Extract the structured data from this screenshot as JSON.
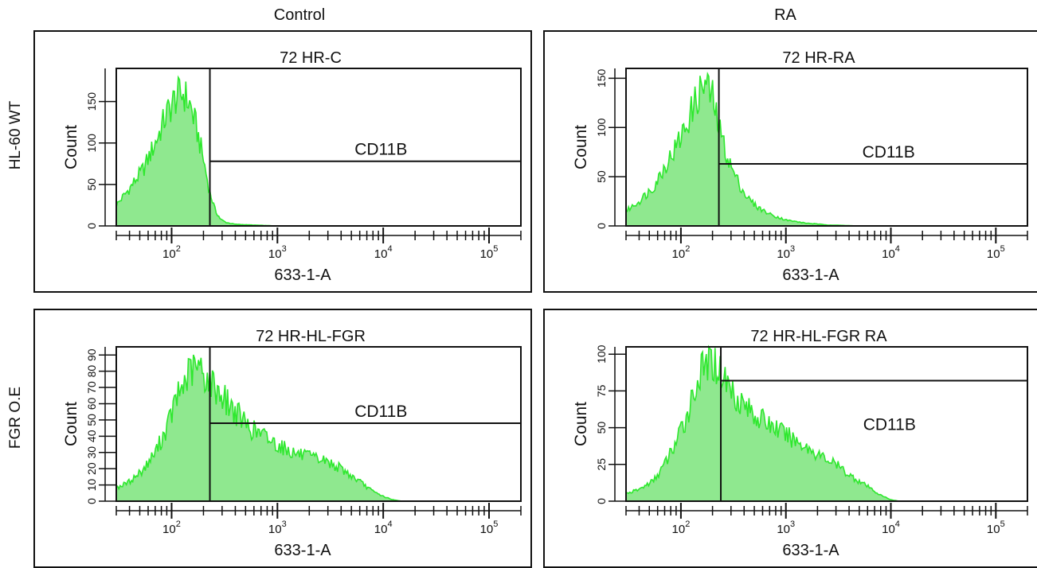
{
  "column_titles": [
    "Control",
    "RA"
  ],
  "row_titles": [
    "HL-60 WT",
    "FGR O.E"
  ],
  "chart_data": [
    {
      "type": "area",
      "title": "72 HR-C",
      "xlabel": "633-1-A",
      "ylabel": "Count",
      "x_scale": "log",
      "x_ticks": [
        "10^2",
        "10^3",
        "10^4",
        "10^5"
      ],
      "y_ticks": [
        0,
        50,
        100,
        150
      ],
      "ylim": [
        0,
        190
      ],
      "gate_label": "CD11B",
      "gate_start": 230,
      "gate_level": 78,
      "fill_color": "#8fe88f",
      "line_color": "#2ee82e",
      "series": [
        {
          "x": [
            30,
            40,
            55,
            70,
            90,
            110,
            130,
            150,
            170,
            200,
            230,
            260,
            290,
            330,
            400,
            600,
            1000,
            3000,
            10000,
            100000
          ],
          "values": [
            25,
            45,
            70,
            100,
            135,
            155,
            160,
            145,
            120,
            80,
            40,
            18,
            8,
            4,
            2,
            1,
            0,
            0,
            0,
            0
          ]
        }
      ]
    },
    {
      "type": "area",
      "title": "72 HR-RA",
      "xlabel": "633-1-A",
      "ylabel": "Count",
      "x_scale": "log",
      "x_ticks": [
        "10^2",
        "10^3",
        "10^4",
        "10^5"
      ],
      "y_ticks": [
        0,
        50,
        100,
        150
      ],
      "ylim": [
        0,
        160
      ],
      "gate_label": "CD11B",
      "gate_start": 230,
      "gate_level": 63,
      "fill_color": "#8fe88f",
      "line_color": "#2ee82e",
      "series": [
        {
          "x": [
            30,
            40,
            55,
            70,
            90,
            110,
            130,
            150,
            170,
            200,
            230,
            260,
            300,
            350,
            420,
            520,
            700,
            1000,
            1500,
            2500,
            5000,
            100000
          ],
          "values": [
            15,
            25,
            40,
            60,
            80,
            100,
            120,
            135,
            145,
            130,
            100,
            80,
            60,
            45,
            30,
            20,
            12,
            6,
            3,
            1,
            0,
            0
          ]
        }
      ]
    },
    {
      "type": "area",
      "title": "72 HR-HL-FGR",
      "xlabel": "633-1-A",
      "ylabel": "Count",
      "x_scale": "log",
      "x_ticks": [
        "10^2",
        "10^3",
        "10^4",
        "10^5"
      ],
      "y_ticks": [
        0,
        10,
        20,
        30,
        40,
        50,
        60,
        70,
        80,
        90
      ],
      "ylim": [
        0,
        95
      ],
      "gate_label": "CD11B",
      "gate_start": 230,
      "gate_level": 48,
      "fill_color": "#8fe88f",
      "line_color": "#2ee82e",
      "series": [
        {
          "x": [
            30,
            40,
            55,
            70,
            90,
            110,
            130,
            150,
            180,
            220,
            260,
            300,
            400,
            550,
            750,
            1000,
            1400,
            2000,
            2800,
            4000,
            6000,
            8000,
            10000,
            12000,
            15000,
            100000
          ],
          "values": [
            8,
            12,
            20,
            30,
            45,
            62,
            72,
            80,
            82,
            75,
            70,
            65,
            55,
            45,
            40,
            35,
            30,
            27,
            25,
            20,
            12,
            6,
            3,
            1,
            0,
            0
          ]
        }
      ]
    },
    {
      "type": "area",
      "title": "72 HR-HL-FGR RA",
      "xlabel": "633-1-A",
      "ylabel": "Count",
      "x_scale": "log",
      "x_ticks": [
        "10^2",
        "10^3",
        "10^4",
        "10^5"
      ],
      "y_ticks": [
        0,
        25,
        50,
        75,
        100
      ],
      "ylim": [
        0,
        105
      ],
      "gate_label": "CD11B",
      "gate_start": 240,
      "gate_level": 82,
      "fill_color": "#8fe88f",
      "line_color": "#2ee82e",
      "series": [
        {
          "x": [
            30,
            40,
            55,
            70,
            90,
            110,
            130,
            150,
            170,
            200,
            240,
            280,
            350,
            450,
            600,
            800,
            1000,
            1500,
            2000,
            3000,
            4000,
            6000,
            8000,
            10000,
            12000,
            100000
          ],
          "values": [
            5,
            8,
            14,
            25,
            40,
            55,
            72,
            85,
            92,
            95,
            88,
            80,
            70,
            62,
            55,
            50,
            45,
            38,
            32,
            25,
            18,
            10,
            4,
            1,
            0,
            0
          ]
        }
      ]
    }
  ]
}
